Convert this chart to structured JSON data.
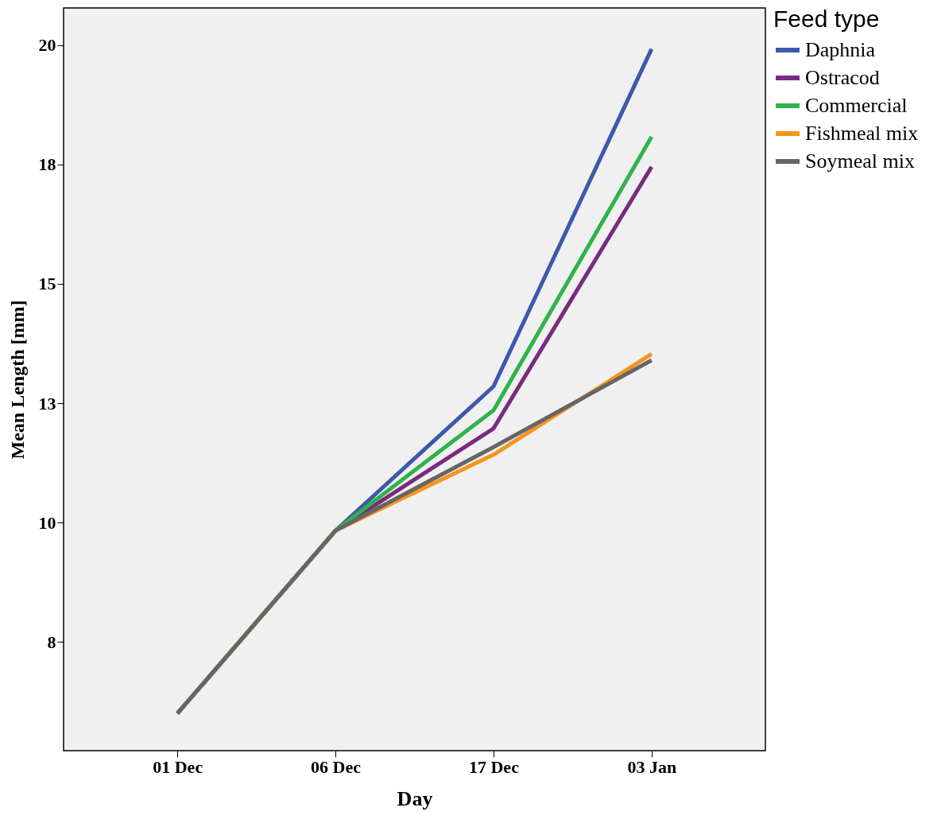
{
  "chart_data": {
    "type": "line",
    "xlabel": "Day",
    "ylabel": "Mean  Length [mm]",
    "legend_title": "Feed type",
    "legend": "top right",
    "grid": false,
    "marker": "none",
    "categories": [
      "01 Dec",
      "06 Dec",
      "17 Dec",
      "03 Jan"
    ],
    "ylim": [
      5.22,
      20.78
    ],
    "yticks": [
      {
        "value": 7.5,
        "label": "8"
      },
      10,
      {
        "value": 12.5,
        "label": "13"
      },
      15,
      {
        "value": 17.5,
        "label": "18"
      },
      20
    ],
    "series": [
      {
        "name": "Daphnia",
        "color": "#3e58ac",
        "values": [
          6.0,
          9.83,
          12.85,
          19.92
        ]
      },
      {
        "name": "Ostracod",
        "color": "#7b2a7f",
        "values": [
          6.0,
          9.83,
          11.97,
          17.45
        ]
      },
      {
        "name": "Commercial",
        "color": "#2fb34a",
        "values": [
          6.0,
          9.83,
          12.35,
          18.08
        ]
      },
      {
        "name": "Fishmeal mix",
        "color": "#f7941d",
        "values": [
          6.0,
          9.83,
          11.42,
          13.53
        ]
      },
      {
        "name": "Soymeal mix",
        "color": "#666666",
        "values": [
          6.0,
          9.83,
          11.58,
          13.4
        ]
      }
    ]
  }
}
